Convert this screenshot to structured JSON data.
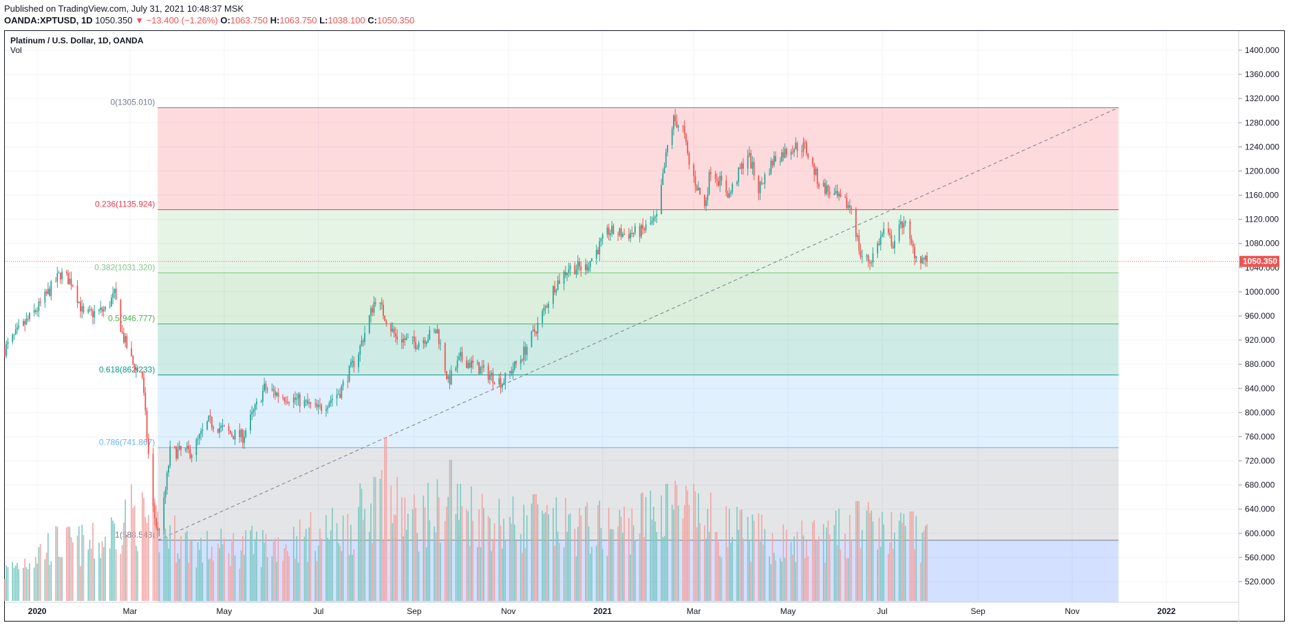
{
  "publish": {
    "text": "Published on TradingView.com, July 31, 2021 10:48:37 MSK"
  },
  "quote": {
    "symbol": "OANDA:XPTUSD, 1D",
    "last": "1050.350",
    "arrow": "▼",
    "change": "−13.400 (−1.26%)",
    "o_label": "O:",
    "o": "1063.750",
    "h_label": "H:",
    "h": "1063.750",
    "l_label": "L:",
    "l": "1038.100",
    "c_label": "C:",
    "c": "1050.350"
  },
  "legend": {
    "title": "Platinum / U.S. Dollar, 1D, OANDA",
    "vol": "Vol"
  },
  "colors": {
    "up": "#26a69a",
    "down": "#ef5350",
    "up_vol": "#7ac9c2",
    "down_vol": "#f4a3a2",
    "grid": "#f0f3fa",
    "axis_text": "#131722"
  },
  "chart_data": {
    "type": "candlestick",
    "y_axis": {
      "ticks": [
        "520.000",
        "560.000",
        "600.000",
        "640.000",
        "680.000",
        "720.000",
        "760.000",
        "800.000",
        "840.000",
        "880.000",
        "920.000",
        "960.000",
        "1000.000",
        "1040.000",
        "1080.000",
        "1120.000",
        "1160.000",
        "1200.000",
        "1240.000",
        "1280.000",
        "1320.000",
        "1360.000",
        "1400.000"
      ],
      "range": [
        493,
        1419
      ]
    },
    "x_axis": {
      "ticks": [
        {
          "label": "2020",
          "date": "2020-01-01",
          "bold": true
        },
        {
          "label": "Mar",
          "date": "2020-03-01",
          "bold": false
        },
        {
          "label": "May",
          "date": "2020-05-01",
          "bold": false
        },
        {
          "label": "Jul",
          "date": "2020-07-01",
          "bold": false
        },
        {
          "label": "Sep",
          "date": "2020-09-01",
          "bold": false
        },
        {
          "label": "Nov",
          "date": "2020-11-01",
          "bold": false
        },
        {
          "label": "2021",
          "date": "2021-01-01",
          "bold": true
        },
        {
          "label": "Mar",
          "date": "2021-03-01",
          "bold": false
        },
        {
          "label": "May",
          "date": "2021-05-01",
          "bold": false
        },
        {
          "label": "Jul",
          "date": "2021-07-01",
          "bold": false
        },
        {
          "label": "Sep",
          "date": "2021-09-01",
          "bold": false
        },
        {
          "label": "Nov",
          "date": "2021-11-01",
          "bold": false
        },
        {
          "label": "2022",
          "date": "2022-01-01",
          "bold": true
        }
      ]
    },
    "last_price": {
      "value": 1050.35,
      "label": "1050.350"
    },
    "price_path": [
      [
        "2019-12-11",
        905
      ],
      [
        "2019-12-20",
        935
      ],
      [
        "2020-01-02",
        975
      ],
      [
        "2020-01-16",
        1030
      ],
      [
        "2020-01-24",
        1015
      ],
      [
        "2020-01-31",
        960
      ],
      [
        "2020-02-14",
        970
      ],
      [
        "2020-02-20",
        995
      ],
      [
        "2020-02-25",
        930
      ],
      [
        "2020-03-03",
        880
      ],
      [
        "2020-03-09",
        860
      ],
      [
        "2020-03-12",
        760
      ],
      [
        "2020-03-16",
        640
      ],
      [
        "2020-03-19",
        600
      ],
      [
        "2020-03-23",
        650
      ],
      [
        "2020-03-27",
        735
      ],
      [
        "2020-04-10",
        735
      ],
      [
        "2020-04-21",
        785
      ],
      [
        "2020-05-05",
        765
      ],
      [
        "2020-05-13",
        760
      ],
      [
        "2020-05-27",
        840
      ],
      [
        "2020-06-05",
        830
      ],
      [
        "2020-06-18",
        820
      ],
      [
        "2020-07-01",
        805
      ],
      [
        "2020-07-15",
        835
      ],
      [
        "2020-07-27",
        900
      ],
      [
        "2020-08-07",
        990
      ],
      [
        "2020-08-20",
        925
      ],
      [
        "2020-09-02",
        915
      ],
      [
        "2020-09-16",
        935
      ],
      [
        "2020-09-23",
        850
      ],
      [
        "2020-10-01",
        890
      ],
      [
        "2020-10-15",
        870
      ],
      [
        "2020-10-28",
        850
      ],
      [
        "2020-11-09",
        890
      ],
      [
        "2020-11-20",
        945
      ],
      [
        "2020-12-01",
        1010
      ],
      [
        "2020-12-10",
        1040
      ],
      [
        "2020-12-21",
        1040
      ],
      [
        "2021-01-05",
        1100
      ],
      [
        "2021-01-15",
        1095
      ],
      [
        "2021-01-26",
        1100
      ],
      [
        "2021-02-05",
        1120
      ],
      [
        "2021-02-12",
        1240
      ],
      [
        "2021-02-16",
        1285
      ],
      [
        "2021-02-22",
        1270
      ],
      [
        "2021-02-26",
        1210
      ],
      [
        "2021-03-08",
        1140
      ],
      [
        "2021-03-12",
        1205
      ],
      [
        "2021-03-24",
        1160
      ],
      [
        "2021-04-05",
        1230
      ],
      [
        "2021-04-12",
        1170
      ],
      [
        "2021-04-22",
        1220
      ],
      [
        "2021-05-04",
        1240
      ],
      [
        "2021-05-12",
        1240
      ],
      [
        "2021-05-21",
        1180
      ],
      [
        "2021-06-04",
        1150
      ],
      [
        "2021-06-11",
        1140
      ],
      [
        "2021-06-17",
        1060
      ],
      [
        "2021-06-23",
        1050
      ],
      [
        "2021-07-02",
        1100
      ],
      [
        "2021-07-08",
        1080
      ],
      [
        "2021-07-15",
        1120
      ],
      [
        "2021-07-19",
        1080
      ],
      [
        "2021-07-23",
        1060
      ],
      [
        "2021-07-30",
        1050.35
      ]
    ],
    "volume_path": [
      [
        "2019-12-11",
        0.18
      ],
      [
        "2020-01-10",
        0.35
      ],
      [
        "2020-02-10",
        0.35
      ],
      [
        "2020-03-01",
        0.55
      ],
      [
        "2020-03-20",
        0.45
      ],
      [
        "2020-04-15",
        0.32
      ],
      [
        "2020-06-01",
        0.35
      ],
      [
        "2020-07-20",
        0.45
      ],
      [
        "2020-08-10",
        0.65
      ],
      [
        "2020-09-01",
        0.5
      ],
      [
        "2020-09-25",
        0.6
      ],
      [
        "2020-11-01",
        0.48
      ],
      [
        "2021-01-10",
        0.45
      ],
      [
        "2021-02-15",
        0.6
      ],
      [
        "2021-03-20",
        0.45
      ],
      [
        "2021-05-01",
        0.35
      ],
      [
        "2021-06-20",
        0.45
      ],
      [
        "2021-07-30",
        0.4
      ]
    ],
    "volume_spikes": [
      {
        "date": "2020-08-14",
        "value": 0.95
      },
      {
        "date": "2020-08-07",
        "value": 0.72
      },
      {
        "date": "2020-09-25",
        "value": 0.82
      },
      {
        "date": "2020-11-18",
        "value": 0.62
      },
      {
        "date": "2021-02-12",
        "value": 0.68
      },
      {
        "date": "2021-06-15",
        "value": 0.58
      },
      {
        "date": "2021-07-20",
        "value": 0.52
      }
    ],
    "fib_retracement": {
      "start_date": "2020-03-19",
      "end_date": "2021-12-01",
      "trend_line": {
        "from": [
          "2020-03-19",
          588.543
        ],
        "to": [
          "2021-12-01",
          1305.01
        ]
      },
      "levels": [
        {
          "ratio": "0",
          "value": 1305.01,
          "label": "0(1305.010)",
          "color": "#787b86",
          "fill": "rgba(242,54,69,0.18)"
        },
        {
          "ratio": "0.236",
          "value": 1135.924,
          "label": "0.236(1135.924)",
          "color": "#f23645",
          "fill": "rgba(129,199,132,0.20)"
        },
        {
          "ratio": "0.382",
          "value": 1031.32,
          "label": "0.382(1031.320)",
          "color": "#81c784",
          "fill": "rgba(76,175,80,0.20)"
        },
        {
          "ratio": "0.5",
          "value": 946.777,
          "label": "0.5(946.777)",
          "color": "#4caf50",
          "fill": "rgba(8,153,129,0.20)"
        },
        {
          "ratio": "0.618",
          "value": 862.233,
          "label": "0.618(862.233)",
          "color": "#089981",
          "fill": "rgba(100,181,246,0.20)"
        },
        {
          "ratio": "0.786",
          "value": 741.867,
          "label": "0.786(741.867)",
          "color": "#64b5f6",
          "fill": "rgba(120,123,134,0.20)"
        },
        {
          "ratio": "1",
          "value": 588.543,
          "label": "1(588.543)",
          "color": "#787b86",
          "fill": "rgba(41,98,255,0.20)"
        }
      ]
    }
  }
}
